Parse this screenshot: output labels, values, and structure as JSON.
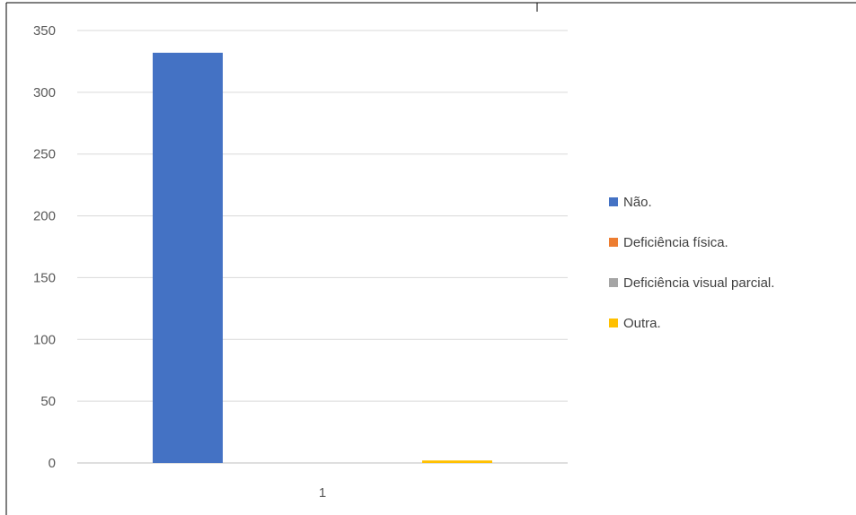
{
  "chart_data": {
    "type": "bar",
    "categories": [
      "1"
    ],
    "series": [
      {
        "name": "Não.",
        "values": [
          332
        ],
        "color": "#4472C4"
      },
      {
        "name": "Deficiência física.",
        "values": [
          0
        ],
        "color": "#ED7D31"
      },
      {
        "name": "Deficiência visual parcial.",
        "values": [
          0
        ],
        "color": "#A5A5A5"
      },
      {
        "name": "Outra.",
        "values": [
          2
        ],
        "color": "#FFC000"
      }
    ],
    "title": "",
    "xlabel": "",
    "ylabel": "",
    "ylim": [
      0,
      350
    ],
    "yticks": [
      0,
      50,
      100,
      150,
      200,
      250,
      300,
      350
    ],
    "grid": true,
    "legend_position": "right"
  }
}
